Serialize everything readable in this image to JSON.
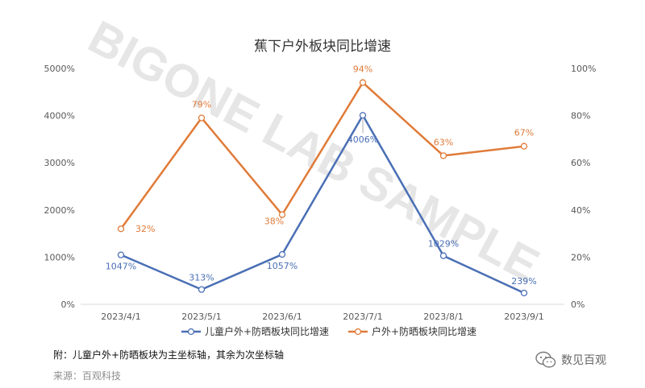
{
  "watermark": "BIGONE LAB SAMPLE",
  "brand": {
    "name": "数见百观",
    "icon": "wechat-icon"
  },
  "note": "附：儿童户外+防晒板块为主坐标轴，其余为次坐标轴",
  "source": "来源：百观科技",
  "colors": {
    "series1": "#4a6fb5",
    "series2": "#e07b39"
  },
  "chart_data": {
    "type": "line",
    "title": "蕉下户外板块同比增速",
    "categories": [
      "2023/4/1",
      "2023/5/1",
      "2023/6/1",
      "2023/7/1",
      "2023/8/1",
      "2023/9/1"
    ],
    "y_left": {
      "ticks": [
        "0%",
        "1000%",
        "2000%",
        "3000%",
        "4000%",
        "5000%"
      ],
      "lim": [
        0,
        5000
      ]
    },
    "y_right": {
      "ticks": [
        "0%",
        "20%",
        "40%",
        "60%",
        "80%",
        "100%"
      ],
      "lim": [
        0,
        100
      ]
    },
    "grid": false,
    "legend_position": "bottom",
    "series": [
      {
        "name": "儿童户外+防晒板块同比增速",
        "axis": "left",
        "values": [
          1047,
          313,
          1057,
          4006,
          1029,
          239
        ],
        "labels": [
          "1047%",
          "313%",
          "1057%",
          "4006%",
          "1029%",
          "239%"
        ]
      },
      {
        "name": "户外+防晒板块同比增速",
        "axis": "right",
        "values": [
          32,
          79,
          38,
          94,
          63,
          67
        ],
        "labels": [
          "32%",
          "79%",
          "38%",
          "94%",
          "63%",
          "67%"
        ]
      }
    ]
  }
}
